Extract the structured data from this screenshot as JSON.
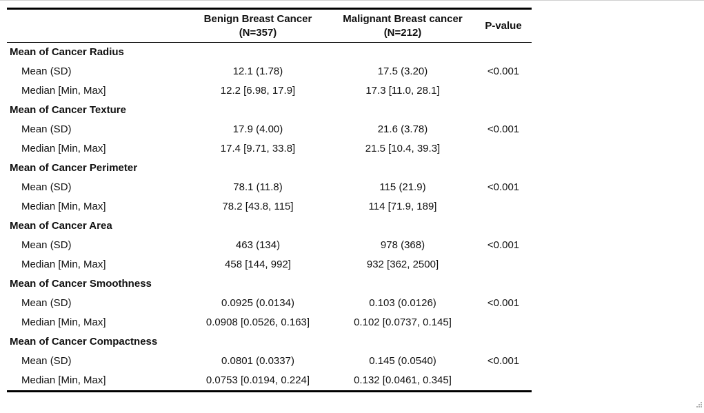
{
  "table": {
    "headers": {
      "label": "",
      "benign": [
        "Benign Breast Cancer",
        "(N=357)"
      ],
      "malignant": [
        "Malignant Breast cancer",
        "(N=212)"
      ],
      "pvalue": "P-value"
    },
    "groups": [
      {
        "title": "Mean of Cancer Radius",
        "rows": [
          {
            "stat": "Mean (SD)",
            "benign": "12.1 (1.78)",
            "malignant": "17.5 (3.20)",
            "p": "<0.001"
          },
          {
            "stat": "Median [Min, Max]",
            "benign": "12.2 [6.98, 17.9]",
            "malignant": "17.3 [11.0, 28.1]",
            "p": ""
          }
        ]
      },
      {
        "title": "Mean of Cancer Texture",
        "rows": [
          {
            "stat": "Mean (SD)",
            "benign": "17.9 (4.00)",
            "malignant": "21.6 (3.78)",
            "p": "<0.001"
          },
          {
            "stat": "Median [Min, Max]",
            "benign": "17.4 [9.71, 33.8]",
            "malignant": "21.5 [10.4, 39.3]",
            "p": ""
          }
        ]
      },
      {
        "title": "Mean of Cancer Perimeter",
        "rows": [
          {
            "stat": "Mean (SD)",
            "benign": "78.1 (11.8)",
            "malignant": "115 (21.9)",
            "p": "<0.001"
          },
          {
            "stat": "Median [Min, Max]",
            "benign": "78.2 [43.8, 115]",
            "malignant": "114 [71.9, 189]",
            "p": ""
          }
        ]
      },
      {
        "title": "Mean of Cancer Area",
        "rows": [
          {
            "stat": "Mean (SD)",
            "benign": "463 (134)",
            "malignant": "978 (368)",
            "p": "<0.001"
          },
          {
            "stat": "Median [Min, Max]",
            "benign": "458 [144, 992]",
            "malignant": "932 [362, 2500]",
            "p": ""
          }
        ]
      },
      {
        "title": "Mean of Cancer Smoothness",
        "rows": [
          {
            "stat": "Mean (SD)",
            "benign": "0.0925 (0.0134)",
            "malignant": "0.103 (0.0126)",
            "p": "<0.001"
          },
          {
            "stat": "Median [Min, Max]",
            "benign": "0.0908 [0.0526, 0.163]",
            "malignant": "0.102 [0.0737, 0.145]",
            "p": ""
          }
        ]
      },
      {
        "title": "Mean of Cancer Compactness",
        "rows": [
          {
            "stat": "Mean (SD)",
            "benign": "0.0801 (0.0337)",
            "malignant": "0.145 (0.0540)",
            "p": "<0.001"
          },
          {
            "stat": "Median [Min, Max]",
            "benign": "0.0753 [0.0194, 0.224]",
            "malignant": "0.132 [0.0461, 0.345]",
            "p": ""
          }
        ]
      }
    ]
  },
  "icons": {
    "resize_grip": "resize-grip-icon"
  },
  "colors": {
    "text": "#111111",
    "rule": "#000000",
    "grip": "#b0b0b0"
  }
}
